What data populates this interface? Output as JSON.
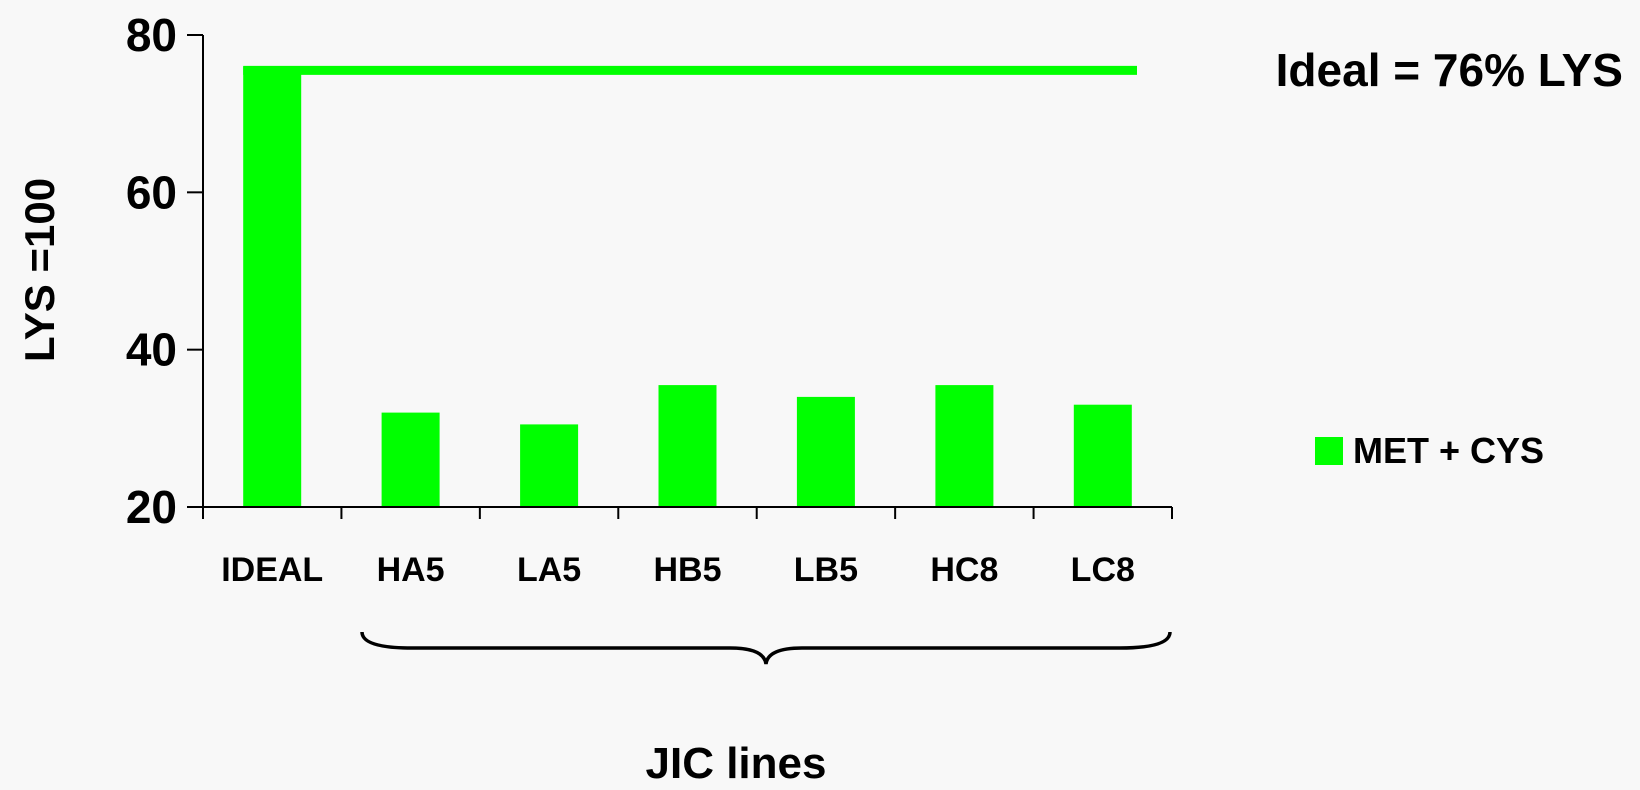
{
  "chart_data": {
    "type": "bar",
    "title": "",
    "ylabel": "LYS =100",
    "xlabel": "JIC lines",
    "ylim": [
      20,
      80
    ],
    "yticks": [
      20,
      40,
      60,
      80
    ],
    "categories": [
      "IDEAL",
      "HA5",
      "LA5",
      "HB5",
      "LB5",
      "HC8",
      "LC8"
    ],
    "series": [
      {
        "name": "MET + CYS",
        "color": "#00ff00",
        "values": [
          76,
          32,
          30.5,
          35.5,
          34,
          35.5,
          33
        ]
      }
    ],
    "reference_line": {
      "value": 75.5,
      "color": "#00ff00"
    },
    "annotation": "Ideal = 76% LYS",
    "legend_position": "right",
    "grid": false,
    "brace_under": [
      "HA5",
      "LA5",
      "HB5",
      "LB5",
      "HC8",
      "LC8"
    ]
  }
}
